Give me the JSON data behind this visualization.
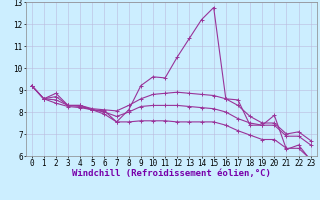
{
  "bg_color": "#cceeff",
  "line_color": "#993399",
  "grid_color": "#bbbbdd",
  "xlabel": "Windchill (Refroidissement éolien,°C)",
  "x": [
    0,
    1,
    2,
    3,
    4,
    5,
    6,
    7,
    8,
    9,
    10,
    11,
    12,
    13,
    14,
    15,
    16,
    17,
    18,
    19,
    20,
    21,
    22,
    23
  ],
  "line1": [
    9.2,
    8.6,
    8.85,
    8.3,
    8.3,
    8.1,
    8.05,
    7.55,
    8.1,
    9.2,
    9.6,
    9.55,
    10.5,
    11.35,
    12.2,
    12.75,
    8.6,
    8.55,
    7.4,
    7.4,
    7.85,
    6.3,
    6.5,
    5.8
  ],
  "line2": [
    9.2,
    8.6,
    8.7,
    8.3,
    8.3,
    8.15,
    8.1,
    8.05,
    8.3,
    8.6,
    8.8,
    8.85,
    8.9,
    8.85,
    8.8,
    8.75,
    8.6,
    8.3,
    7.8,
    7.5,
    7.5,
    7.0,
    7.1,
    6.7
  ],
  "line3": [
    9.2,
    8.6,
    8.55,
    8.3,
    8.25,
    8.1,
    8.0,
    7.8,
    8.0,
    8.25,
    8.3,
    8.3,
    8.3,
    8.25,
    8.2,
    8.15,
    8.0,
    7.7,
    7.5,
    7.4,
    7.4,
    6.9,
    6.9,
    6.5
  ],
  "line4": [
    9.2,
    8.6,
    8.4,
    8.25,
    8.2,
    8.1,
    7.9,
    7.55,
    7.55,
    7.6,
    7.6,
    7.6,
    7.55,
    7.55,
    7.55,
    7.55,
    7.4,
    7.15,
    6.95,
    6.75,
    6.75,
    6.35,
    6.35,
    5.85
  ],
  "ylim": [
    6,
    13
  ],
  "xlim": [
    -0.5,
    23.5
  ],
  "yticks": [
    6,
    7,
    8,
    9,
    10,
    11,
    12,
    13
  ],
  "xticks": [
    0,
    1,
    2,
    3,
    4,
    5,
    6,
    7,
    8,
    9,
    10,
    11,
    12,
    13,
    14,
    15,
    16,
    17,
    18,
    19,
    20,
    21,
    22,
    23
  ],
  "marker": "+",
  "marker_size": 3,
  "line_width": 0.8,
  "xlabel_fontsize": 6.5,
  "tick_fontsize": 5.5
}
